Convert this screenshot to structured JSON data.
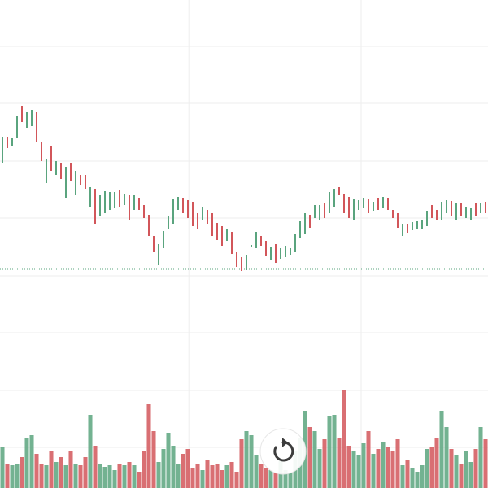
{
  "chart_data": {
    "type": "candlestick",
    "xlim": [
      -0.5,
      99.5
    ],
    "ylim": [
      0,
      600
    ],
    "volume_ylim": [
      0,
      600
    ],
    "xgrid": [
      38.2,
      73.5
    ],
    "ygrid": [
      543,
      473,
      402,
      332,
      261,
      191,
      120,
      50
    ],
    "grid": true,
    "price_line": 269,
    "up_color": "#5aa47e",
    "down_color": "#d2565a",
    "open": [
      400,
      432,
      420,
      430,
      470,
      443,
      445,
      462,
      425,
      375,
      420,
      385,
      400,
      357,
      400,
      360,
      385,
      385,
      345,
      368,
      335,
      338,
      342,
      344,
      366,
      348,
      360,
      342,
      357,
      348,
      336,
      310,
      274,
      295,
      318,
      325,
      342,
      356,
      354,
      352,
      338,
      330,
      342,
      338,
      326,
      322,
      304,
      315,
      290,
      284,
      268,
      296,
      295,
      310,
      304,
      280,
      300,
      282,
      284,
      287,
      290,
      307,
      312,
      336,
      332,
      330,
      350,
      338,
      345,
      370,
      362,
      358,
      330,
      342,
      344,
      355,
      340,
      356,
      344,
      357,
      342,
      338,
      310,
      325,
      317,
      318,
      318,
      322,
      348,
      342,
      330,
      338,
      353,
      330,
      350,
      332,
      330,
      350,
      338,
      352
    ],
    "close": [
      432,
      418,
      430,
      457,
      450,
      462,
      465,
      425,
      402,
      405,
      390,
      402,
      380,
      395,
      378,
      390,
      372,
      368,
      370,
      325,
      360,
      365,
      364,
      364,
      345,
      362,
      330,
      360,
      342,
      332,
      310,
      290,
      300,
      316,
      335,
      355,
      358,
      338,
      332,
      322,
      318,
      345,
      325,
      310,
      305,
      298,
      318,
      288,
      272,
      267,
      286,
      299,
      315,
      297,
      285,
      296,
      277,
      295,
      298,
      295,
      312,
      328,
      338,
      320,
      348,
      348,
      332,
      364,
      368,
      360,
      338,
      332,
      355,
      354,
      356,
      338,
      352,
      342,
      358,
      342,
      332,
      320,
      325,
      314,
      327,
      328,
      329,
      340,
      332,
      330,
      352,
      354,
      335,
      350,
      335,
      345,
      344,
      335,
      350,
      338
    ],
    "volume": [
      50,
      30,
      28,
      30,
      38,
      62,
      65,
      42,
      30,
      28,
      45,
      32,
      38,
      28,
      45,
      30,
      28,
      38,
      90,
      52,
      30,
      26,
      28,
      22,
      30,
      28,
      32,
      28,
      20,
      45,
      103,
      70,
      32,
      48,
      68,
      52,
      30,
      42,
      48,
      25,
      30,
      22,
      35,
      28,
      30,
      22,
      28,
      32,
      20,
      60,
      70,
      65,
      40,
      30,
      25,
      22,
      18,
      35,
      22,
      18,
      45,
      62,
      95,
      75,
      70,
      48,
      60,
      88,
      90,
      62,
      120,
      52,
      45,
      40,
      55,
      70,
      42,
      48,
      56,
      50,
      45,
      60,
      28,
      35,
      25,
      20,
      28,
      48,
      50,
      62,
      95,
      75,
      48,
      40,
      30,
      45,
      32,
      48,
      75,
      60
    ]
  }
}
